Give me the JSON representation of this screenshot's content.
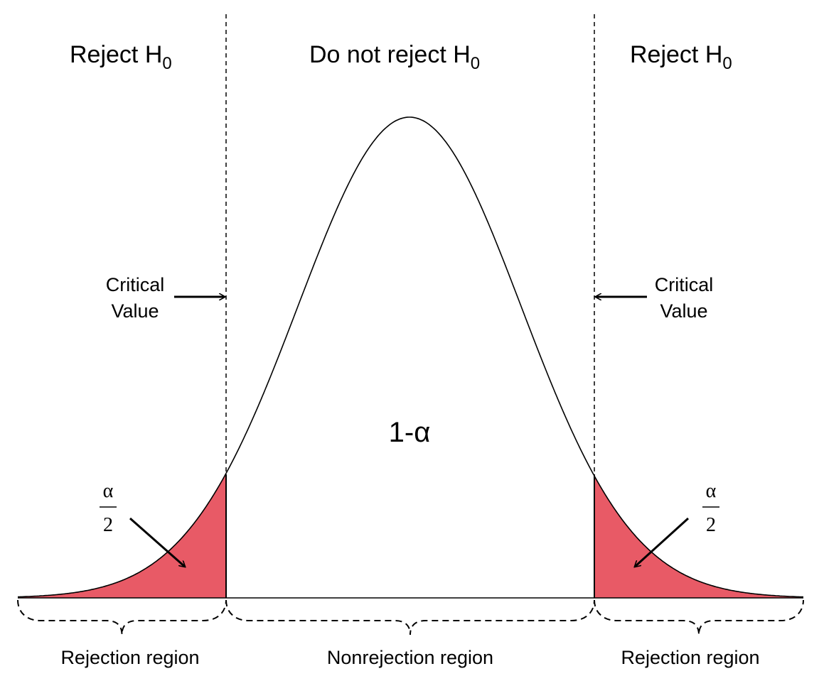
{
  "regions": [
    {
      "label": "Reject H",
      "subscript": "0",
      "bracket_label": "Rejection region"
    },
    {
      "label": "Do not reject H",
      "subscript": "0",
      "bracket_label": "Nonrejection region"
    },
    {
      "label": "Reject H",
      "subscript": "0",
      "bracket_label": "Rejection region"
    }
  ],
  "critical_value": {
    "left": [
      "Critical",
      "Value"
    ],
    "right": [
      "Critical",
      "Value"
    ]
  },
  "center_label": "1-α",
  "tail_label": {
    "left": {
      "numerator": "α",
      "denominator": "2"
    },
    "right": {
      "numerator": "α",
      "denominator": "2"
    }
  }
}
